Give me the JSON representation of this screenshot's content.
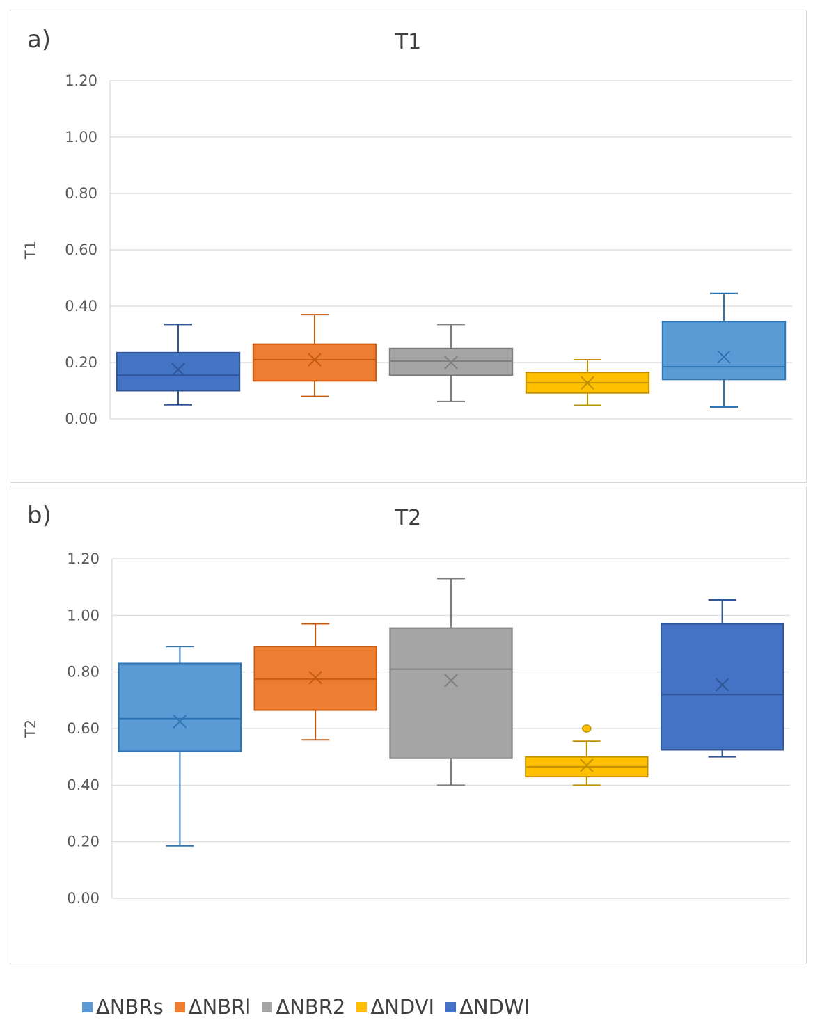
{
  "colors": {
    "light_blue": "#5b9bd5",
    "orange": "#ed7d31",
    "gray": "#a5a5a5",
    "yellow": "#ffc000",
    "dark_blue": "#4472c4"
  },
  "legend": [
    {
      "label": "ΔNBRs",
      "color": "#5b9bd5"
    },
    {
      "label": "ΔNBRl",
      "color": "#ed7d31"
    },
    {
      "label": "ΔNBR2",
      "color": "#a5a5a5"
    },
    {
      "label": "ΔNDVI",
      "color": "#ffc000"
    },
    {
      "label": "ΔNDWI",
      "color": "#4472c4"
    }
  ],
  "chart_data": [
    {
      "type": "boxplot",
      "panel_label": "a)",
      "title": "T1",
      "ylabel": "T1",
      "ylim": [
        0,
        1.2
      ],
      "yticks": [
        "0.00",
        "0.20",
        "0.40",
        "0.60",
        "0.80",
        "1.00",
        "1.20"
      ],
      "grid": true,
      "boxes": [
        {
          "fill": "#4472c4",
          "stroke": "#2f5597",
          "min": 0.05,
          "q1": 0.1,
          "median": 0.155,
          "q3": 0.235,
          "max": 0.335,
          "mean": 0.175,
          "outliers": []
        },
        {
          "fill": "#ed7d31",
          "stroke": "#c55a11",
          "min": 0.08,
          "q1": 0.135,
          "median": 0.21,
          "q3": 0.265,
          "max": 0.37,
          "mean": 0.21,
          "outliers": []
        },
        {
          "fill": "#a5a5a5",
          "stroke": "#7f7f7f",
          "min": 0.062,
          "q1": 0.155,
          "median": 0.205,
          "q3": 0.25,
          "max": 0.335,
          "mean": 0.2,
          "outliers": []
        },
        {
          "fill": "#ffc000",
          "stroke": "#bf9000",
          "min": 0.048,
          "q1": 0.092,
          "median": 0.128,
          "q3": 0.165,
          "max": 0.21,
          "mean": 0.128,
          "outliers": []
        },
        {
          "fill": "#5b9bd5",
          "stroke": "#2e75b6",
          "min": 0.042,
          "q1": 0.14,
          "median": 0.185,
          "q3": 0.345,
          "max": 0.445,
          "mean": 0.22,
          "outliers": []
        }
      ]
    },
    {
      "type": "boxplot",
      "panel_label": "b)",
      "title": "T2",
      "ylabel": "T2",
      "ylim": [
        0,
        1.2
      ],
      "yticks": [
        "0.00",
        "0.20",
        "0.40",
        "0.60",
        "0.80",
        "1.00",
        "1.20"
      ],
      "grid": true,
      "boxes": [
        {
          "fill": "#5b9bd5",
          "stroke": "#2e75b6",
          "min": 0.185,
          "q1": 0.52,
          "median": 0.635,
          "q3": 0.83,
          "max": 0.89,
          "mean": 0.625,
          "outliers": []
        },
        {
          "fill": "#ed7d31",
          "stroke": "#c55a11",
          "min": 0.56,
          "q1": 0.665,
          "median": 0.775,
          "q3": 0.89,
          "max": 0.97,
          "mean": 0.78,
          "outliers": []
        },
        {
          "fill": "#a5a5a5",
          "stroke": "#7f7f7f",
          "min": 0.4,
          "q1": 0.495,
          "median": 0.81,
          "q3": 0.955,
          "max": 1.13,
          "mean": 0.77,
          "outliers": []
        },
        {
          "fill": "#ffc000",
          "stroke": "#bf9000",
          "min": 0.4,
          "q1": 0.43,
          "median": 0.465,
          "q3": 0.5,
          "max": 0.555,
          "mean": 0.47,
          "outliers": [
            0.6
          ]
        },
        {
          "fill": "#4472c4",
          "stroke": "#2f5597",
          "min": 0.5,
          "q1": 0.525,
          "median": 0.72,
          "q3": 0.97,
          "max": 1.055,
          "mean": 0.755,
          "outliers": []
        }
      ]
    }
  ]
}
